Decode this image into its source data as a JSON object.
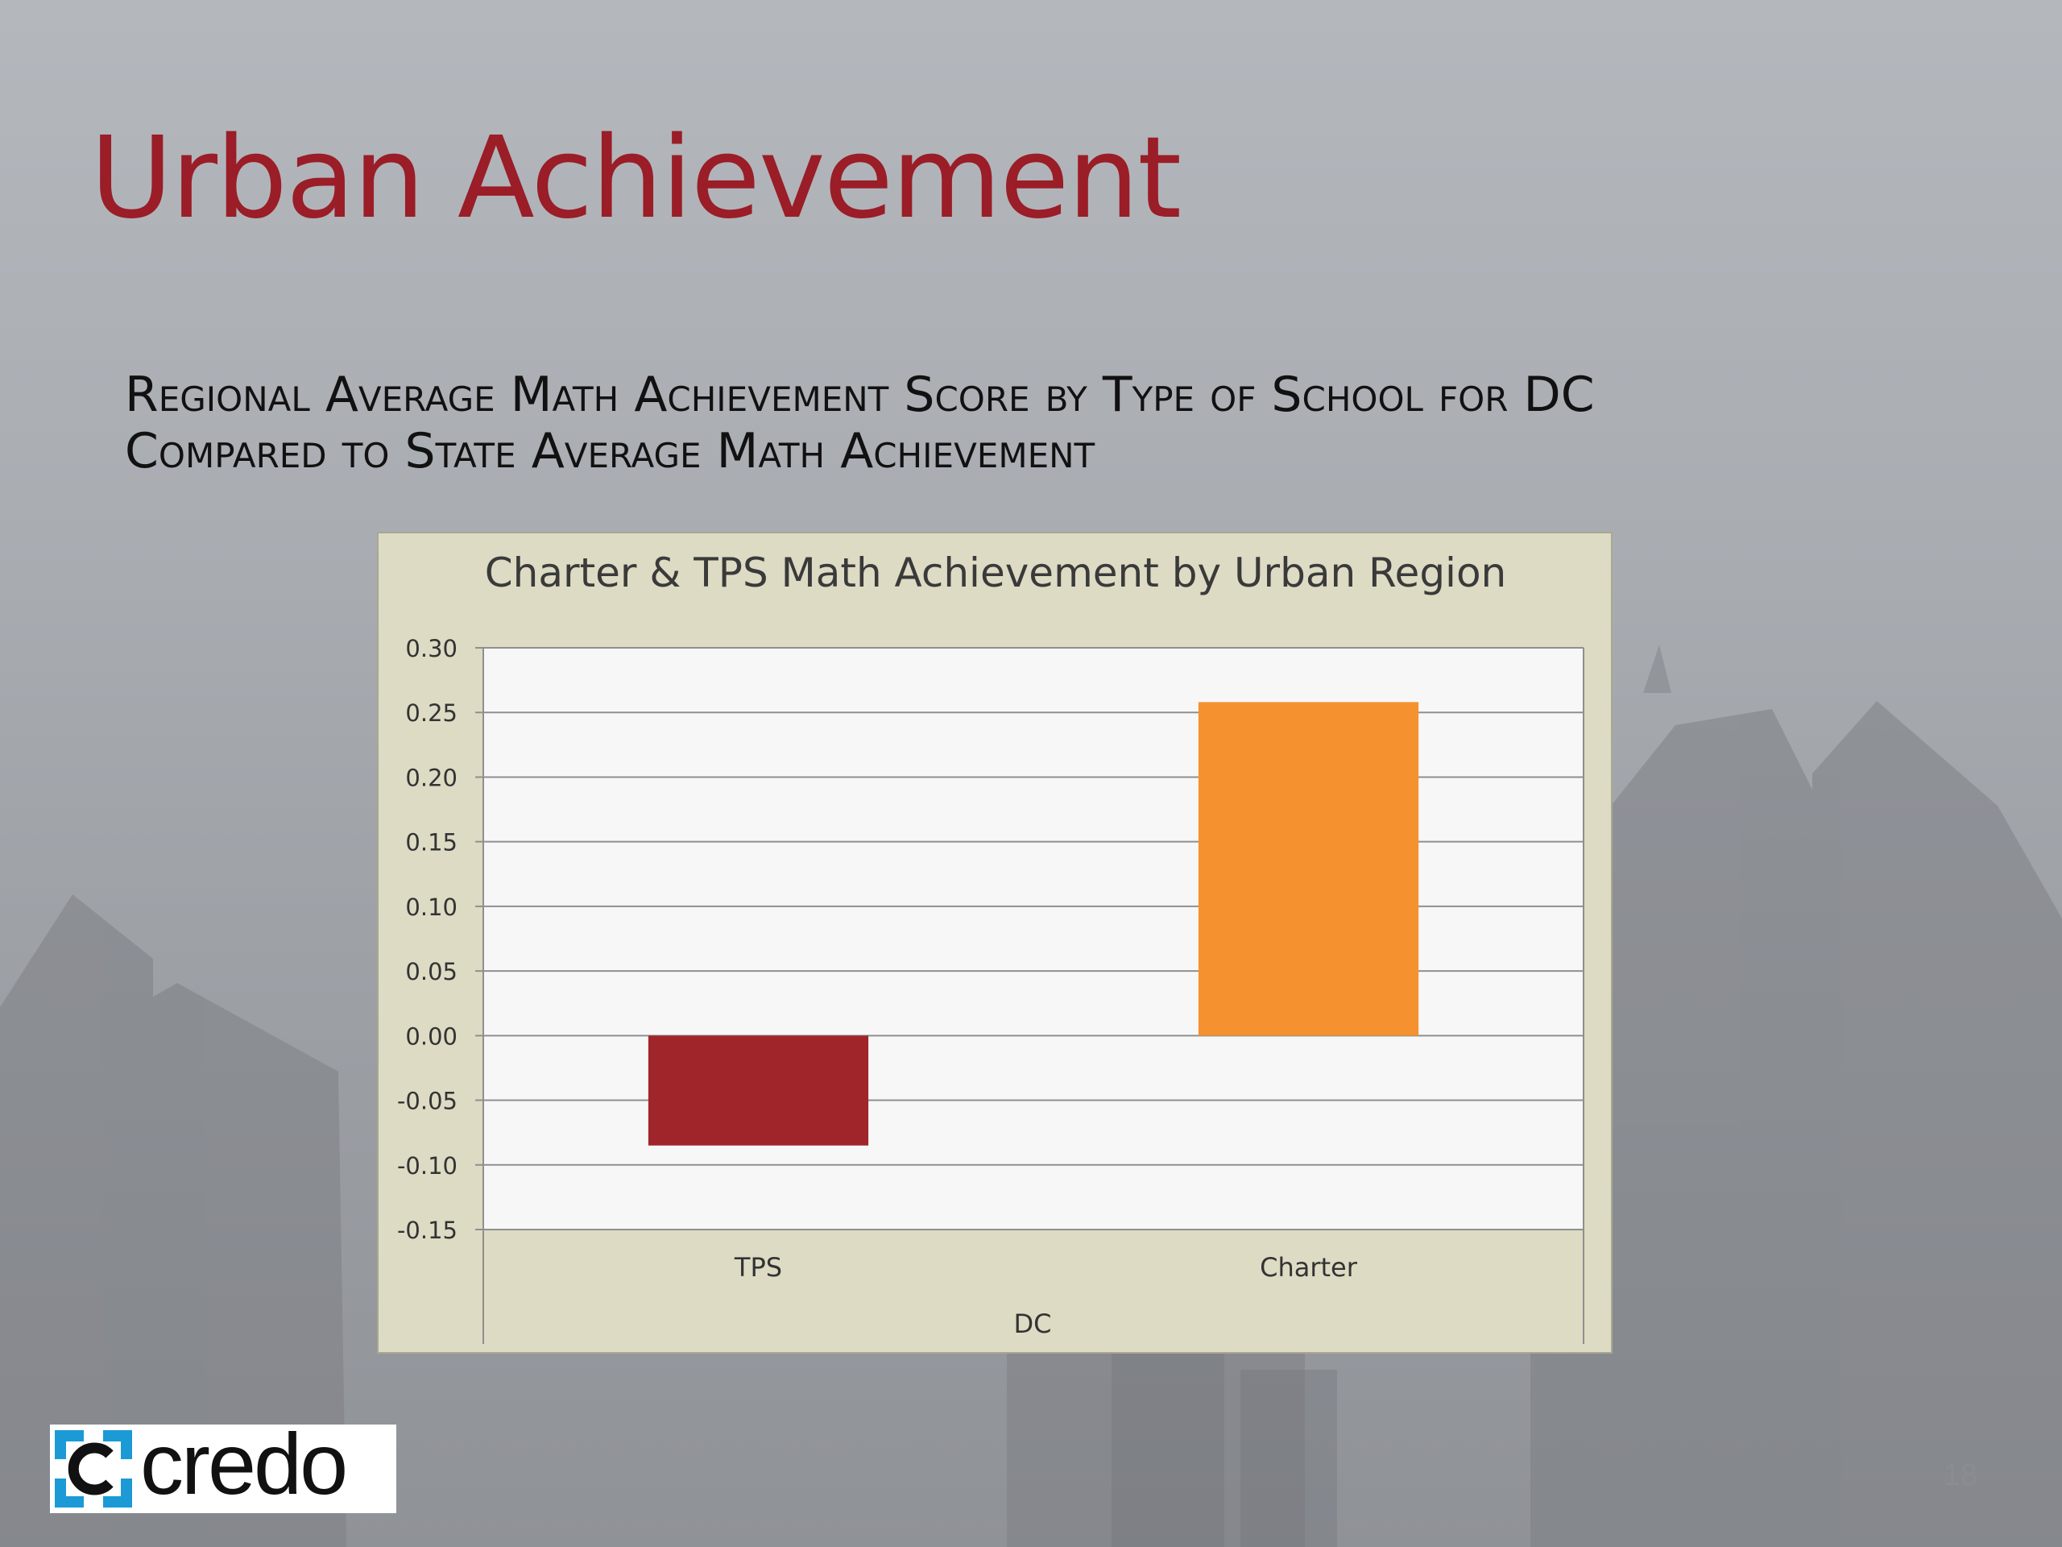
{
  "slide": {
    "title": "Urban Achievement",
    "subtitle_line1": "Regional Average Math Achievement Score by Type of School for DC",
    "subtitle_line2": "Compared to State Average Math Achievement",
    "page_number": "18",
    "logo_text": "credo"
  },
  "colors": {
    "title": "#9a1d27",
    "chart_bg": "#dddbc4",
    "plot_bg": "#f7f7f7",
    "tps": "#a0252a",
    "charter": "#f5912e",
    "logo_blue": "#1b9ad6"
  },
  "chart_data": {
    "type": "bar",
    "title": "Charter & TPS Math Achievement by Urban Region",
    "categories": [
      "TPS",
      "Charter"
    ],
    "group_label": "DC",
    "values": [
      -0.085,
      0.258
    ],
    "bar_colors": [
      "#a0252a",
      "#f5912e"
    ],
    "ylim": [
      -0.15,
      0.3
    ],
    "yticks": [
      0.3,
      0.25,
      0.2,
      0.15,
      0.1,
      0.05,
      0.0,
      -0.05,
      -0.1,
      -0.15
    ],
    "ytick_labels": [
      "0.30",
      "0.25",
      "0.20",
      "0.15",
      "0.10",
      "0.05",
      "0.00",
      "-0.05",
      "-0.10",
      "-0.15"
    ],
    "grid": true,
    "legend": "none"
  }
}
